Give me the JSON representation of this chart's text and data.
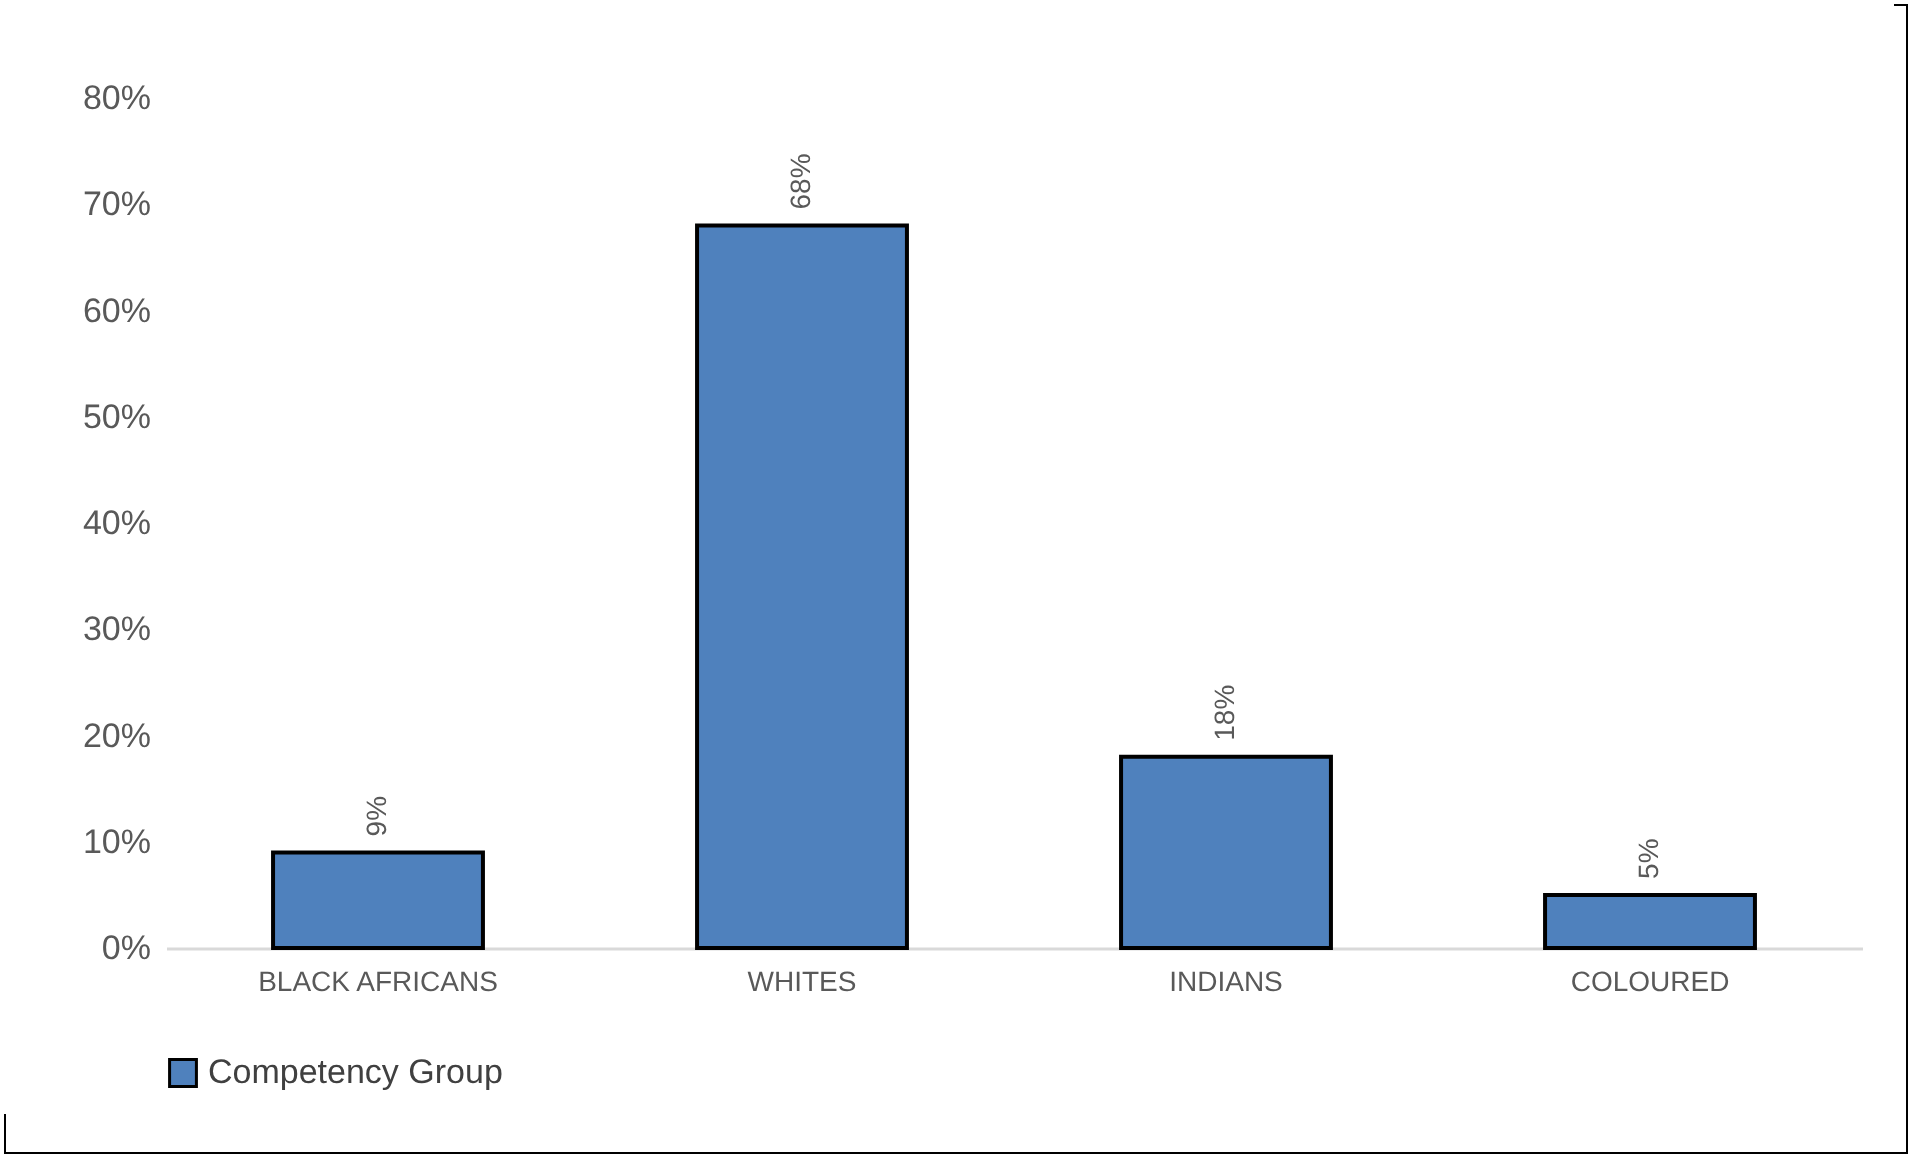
{
  "chart_data": {
    "type": "bar",
    "categories": [
      "BLACK AFRICANS",
      "WHITES",
      "INDIANS",
      "COLOURED"
    ],
    "series": [
      {
        "name": "Competency Group",
        "color": "#4f81bd",
        "values": [
          9,
          68,
          18,
          5
        ],
        "value_labels": [
          "9%",
          "68%",
          "18%",
          "5%"
        ]
      }
    ],
    "ylim": [
      0,
      80
    ],
    "yticks": [
      {
        "value": 0,
        "label": "0%"
      },
      {
        "value": 10,
        "label": "10%"
      },
      {
        "value": 20,
        "label": "20%"
      },
      {
        "value": 30,
        "label": "30%"
      },
      {
        "value": 40,
        "label": "40%"
      },
      {
        "value": 50,
        "label": "50%"
      },
      {
        "value": 60,
        "label": "60%"
      },
      {
        "value": 70,
        "label": "70%"
      },
      {
        "value": 80,
        "label": "80%"
      }
    ],
    "grid": false,
    "legend": "bottom"
  }
}
